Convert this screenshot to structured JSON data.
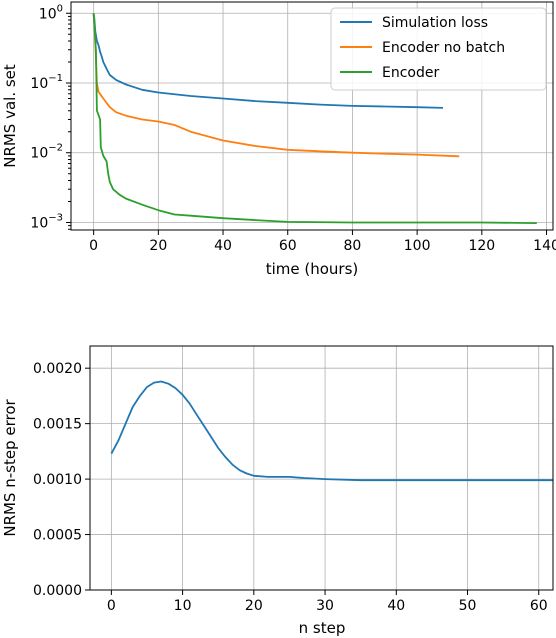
{
  "chart_data": [
    {
      "type": "line",
      "xlabel": "time (hours)",
      "ylabel": "NRMS val. set",
      "yscale": "log",
      "xlim": [
        -7,
        142
      ],
      "ylim": [
        0.00078,
        1.45
      ],
      "grid": true,
      "legend_position": "top-right",
      "x_ticks": [
        0,
        20,
        40,
        60,
        80,
        100,
        120,
        140
      ],
      "x_tick_labels": [
        "0",
        "20",
        "40",
        "60",
        "80",
        "100",
        "120",
        "140"
      ],
      "y_ticks": [
        0.001,
        0.01,
        0.1,
        1
      ],
      "y_tick_labels": [
        {
          "base": "10",
          "exp": "−3"
        },
        {
          "base": "10",
          "exp": "−2"
        },
        {
          "base": "10",
          "exp": "−1"
        },
        {
          "base": "10",
          "exp": "0"
        }
      ],
      "series": [
        {
          "name": "Simulation loss",
          "color": "#1f77b4",
          "points": [
            [
              0,
              1.0
            ],
            [
              0.2,
              0.85
            ],
            [
              0.5,
              0.55
            ],
            [
              1,
              0.4
            ],
            [
              1.5,
              0.35
            ],
            [
              2,
              0.28
            ],
            [
              2.5,
              0.24
            ],
            [
              3,
              0.2
            ],
            [
              4,
              0.16
            ],
            [
              5,
              0.13
            ],
            [
              7,
              0.11
            ],
            [
              10,
              0.095
            ],
            [
              15,
              0.08
            ],
            [
              20,
              0.073
            ],
            [
              30,
              0.065
            ],
            [
              40,
              0.06
            ],
            [
              50,
              0.055
            ],
            [
              60,
              0.052
            ],
            [
              70,
              0.049
            ],
            [
              80,
              0.047
            ],
            [
              90,
              0.046
            ],
            [
              100,
              0.045
            ],
            [
              108,
              0.044
            ]
          ]
        },
        {
          "name": "Encoder no batch",
          "color": "#ff7f0e",
          "points": [
            [
              0,
              1.0
            ],
            [
              0.3,
              0.6
            ],
            [
              0.6,
              0.3
            ],
            [
              1,
              0.1
            ],
            [
              1.5,
              0.075
            ],
            [
              3,
              0.06
            ],
            [
              5,
              0.045
            ],
            [
              7,
              0.038
            ],
            [
              10,
              0.034
            ],
            [
              15,
              0.03
            ],
            [
              20,
              0.028
            ],
            [
              25,
              0.025
            ],
            [
              30,
              0.02
            ],
            [
              40,
              0.015
            ],
            [
              50,
              0.0125
            ],
            [
              60,
              0.011
            ],
            [
              70,
              0.0105
            ],
            [
              80,
              0.01
            ],
            [
              90,
              0.0097
            ],
            [
              100,
              0.0094
            ],
            [
              113,
              0.0089
            ]
          ]
        },
        {
          "name": "Encoder",
          "color": "#2ca02c",
          "points": [
            [
              0,
              1.0
            ],
            [
              0.3,
              0.6
            ],
            [
              0.7,
              0.3
            ],
            [
              1,
              0.04
            ],
            [
              1.5,
              0.035
            ],
            [
              2,
              0.03
            ],
            [
              2.2,
              0.012
            ],
            [
              3,
              0.009
            ],
            [
              4,
              0.0075
            ],
            [
              4.5,
              0.005
            ],
            [
              5,
              0.0038
            ],
            [
              6,
              0.003
            ],
            [
              8,
              0.0025
            ],
            [
              10,
              0.0022
            ],
            [
              15,
              0.0018
            ],
            [
              20,
              0.0015
            ],
            [
              25,
              0.0013
            ],
            [
              30,
              0.00125
            ],
            [
              40,
              0.00115
            ],
            [
              50,
              0.00108
            ],
            [
              60,
              0.00102
            ],
            [
              80,
              0.001
            ],
            [
              100,
              0.001
            ],
            [
              120,
              0.001
            ],
            [
              137,
              0.00098
            ]
          ]
        }
      ]
    },
    {
      "type": "line",
      "xlabel": "n step",
      "ylabel": "NRMS n-step error",
      "xlim": [
        -3,
        62
      ],
      "ylim": [
        0,
        0.0022
      ],
      "grid": true,
      "x_ticks": [
        0,
        10,
        20,
        30,
        40,
        50,
        60
      ],
      "x_tick_labels": [
        "0",
        "10",
        "20",
        "30",
        "40",
        "50",
        "60"
      ],
      "y_ticks": [
        0,
        0.0005,
        0.001,
        0.0015,
        0.002
      ],
      "y_tick_labels": [
        "0.0000",
        "0.0005",
        "0.0010",
        "0.0015",
        "0.0020"
      ],
      "series": [
        {
          "color": "#1f77b4",
          "points": [
            [
              0,
              0.00123
            ],
            [
              1,
              0.00135
            ],
            [
              2,
              0.0015
            ],
            [
              3,
              0.00165
            ],
            [
              4,
              0.00175
            ],
            [
              5,
              0.00183
            ],
            [
              6,
              0.00187
            ],
            [
              7,
              0.00188
            ],
            [
              8,
              0.00186
            ],
            [
              9,
              0.00182
            ],
            [
              10,
              0.00176
            ],
            [
              11,
              0.00168
            ],
            [
              12,
              0.00158
            ],
            [
              13,
              0.00148
            ],
            [
              14,
              0.00138
            ],
            [
              15,
              0.00128
            ],
            [
              16,
              0.0012
            ],
            [
              17,
              0.00113
            ],
            [
              18,
              0.00108
            ],
            [
              19,
              0.00105
            ],
            [
              20,
              0.00103
            ],
            [
              22,
              0.00102
            ],
            [
              25,
              0.00102
            ],
            [
              27,
              0.00101
            ],
            [
              30,
              0.001
            ],
            [
              35,
              0.00099
            ],
            [
              40,
              0.00099
            ],
            [
              45,
              0.00099
            ],
            [
              50,
              0.00099
            ],
            [
              55,
              0.00099
            ],
            [
              60,
              0.00099
            ],
            [
              62,
              0.00099
            ]
          ]
        }
      ]
    }
  ]
}
